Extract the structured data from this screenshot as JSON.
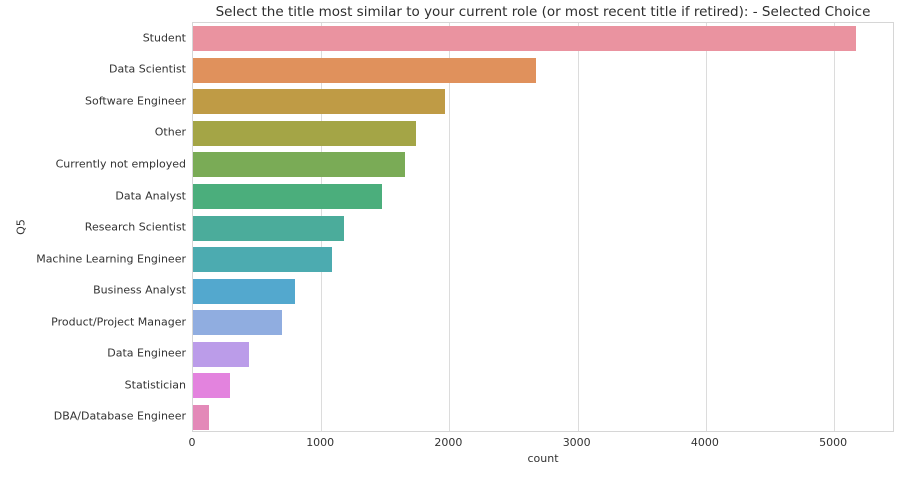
{
  "chart_data": {
    "type": "bar",
    "orientation": "horizontal",
    "title": "Select the title most similar to your current role (or most recent title if retired): - Selected Choice",
    "xlabel": "count",
    "ylabel": "Q5",
    "xlim": [
      0,
      5475
    ],
    "xticks": [
      0,
      1000,
      2000,
      3000,
      4000,
      5000
    ],
    "xtick_labels": [
      "0",
      "1000",
      "2000",
      "3000",
      "4000",
      "5000"
    ],
    "grid": true,
    "legend": "none",
    "categories": [
      "Student",
      "Data Scientist",
      "Software Engineer",
      "Other",
      "Currently not employed",
      "Data Analyst",
      "Research Scientist",
      "Machine Learning Engineer",
      "Business Analyst",
      "Product/Project Manager",
      "Data Engineer",
      "Statistician",
      "DBA/Database Engineer"
    ],
    "values": [
      5171,
      2676,
      1968,
      1737,
      1652,
      1475,
      1174,
      1082,
      798,
      692,
      435,
      287,
      125
    ],
    "bar_colors": [
      "#EA93A0",
      "#E0915C",
      "#BF9B45",
      "#A4A546",
      "#7AAB56",
      "#4BAE7C",
      "#4BAC9B",
      "#4CABB0",
      "#53A8CE",
      "#90ADE0",
      "#BB9CE9",
      "#E383DE",
      "#E389B8"
    ]
  },
  "style_colors": {
    "grid": "#dcdcdc",
    "plot_border": "#d6d6d6",
    "text": "#333333",
    "background": "#ffffff"
  }
}
